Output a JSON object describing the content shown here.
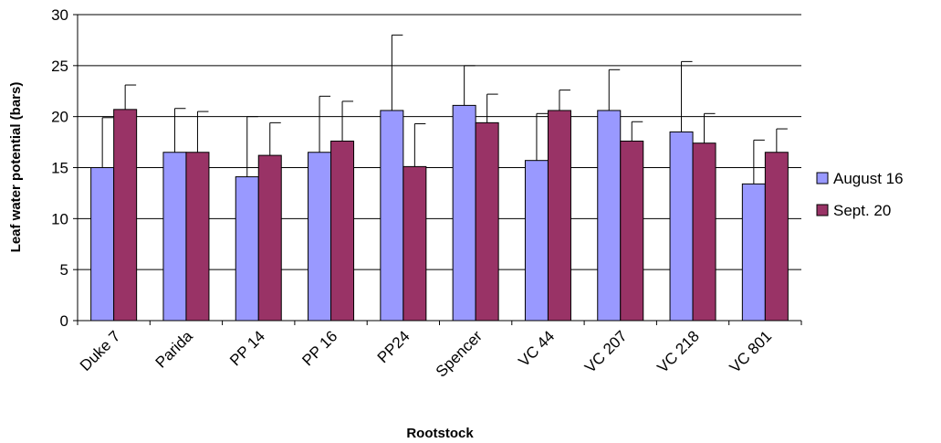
{
  "chart_data": {
    "type": "bar",
    "title": "",
    "xlabel": "Rootstock",
    "ylabel": "Leaf water potential (bars)",
    "categories": [
      "Duke 7",
      "Parida",
      "PP 14",
      "PP 16",
      "PP24",
      "Spencer",
      "VC 44",
      "VC 207",
      "VC 218",
      "VC 801"
    ],
    "series": [
      {
        "name": "August 16",
        "color": "#9999ff",
        "values": [
          15.0,
          16.5,
          14.1,
          16.5,
          20.6,
          21.1,
          15.7,
          20.6,
          18.5,
          13.4
        ],
        "error_upper": [
          19.9,
          20.8,
          20.0,
          22.0,
          28.0,
          25.0,
          20.3,
          24.6,
          25.4,
          17.7
        ]
      },
      {
        "name": "Sept. 20",
        "color": "#993366",
        "values": [
          20.7,
          16.5,
          16.2,
          17.6,
          15.1,
          19.4,
          20.6,
          17.6,
          17.4,
          16.5
        ],
        "error_upper": [
          23.1,
          20.5,
          19.4,
          21.5,
          19.3,
          22.2,
          22.6,
          19.5,
          20.3,
          18.8
        ]
      }
    ],
    "ylim": [
      0,
      30
    ],
    "yticks": [
      0,
      5,
      10,
      15,
      20,
      25,
      30
    ],
    "grid": true,
    "legend_position": "right"
  }
}
